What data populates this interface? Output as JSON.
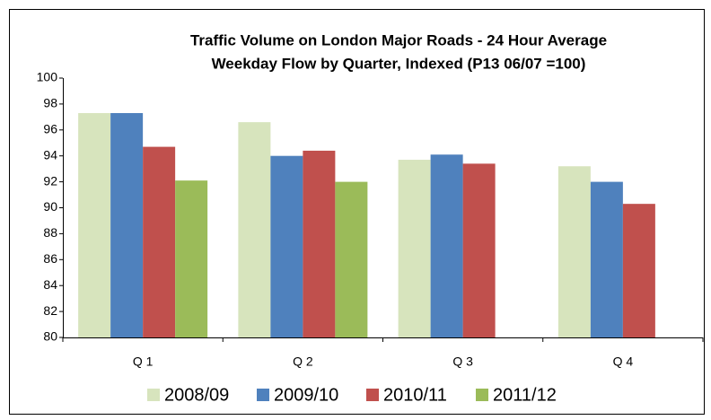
{
  "chart_data": {
    "type": "bar",
    "title": [
      "Traffic Volume on London Major Roads - 24 Hour Average",
      "Weekday Flow by Quarter, Indexed (P13 06/07 =100)"
    ],
    "categories": [
      "Q 1",
      "Q 2",
      "Q 3",
      "Q 4"
    ],
    "series": [
      {
        "name": "2008/09",
        "color": "#d7e4bd",
        "values": [
          97.3,
          96.6,
          93.7,
          93.2
        ]
      },
      {
        "name": "2009/10",
        "color": "#4f81bd",
        "values": [
          97.3,
          94.0,
          94.1,
          92.0
        ]
      },
      {
        "name": "2010/11",
        "color": "#c0504d",
        "values": [
          94.7,
          94.4,
          93.4,
          90.3
        ]
      },
      {
        "name": "2011/12",
        "color": "#9bbb59",
        "values": [
          92.1,
          92.0,
          null,
          null
        ]
      }
    ],
    "ylim": [
      80,
      100
    ],
    "yticks": [
      80,
      82,
      84,
      86,
      88,
      90,
      92,
      94,
      96,
      98,
      100
    ],
    "grid": false,
    "legend": "bottom"
  }
}
